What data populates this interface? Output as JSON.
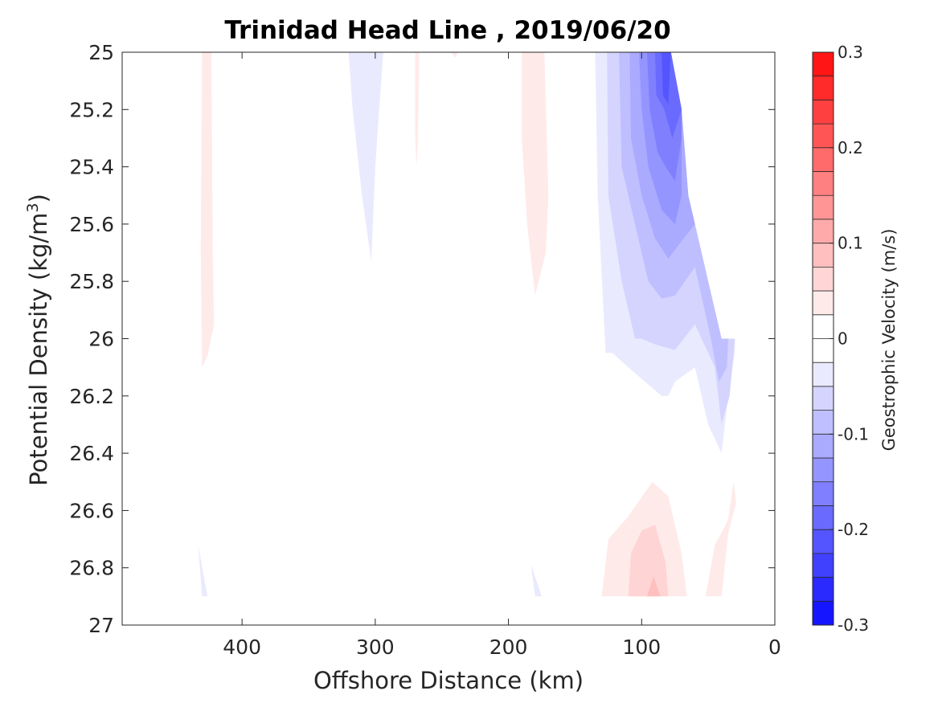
{
  "chart_data": {
    "type": "contour",
    "title": "Trinidad Head Line , 2019/06/20",
    "xlabel": "Offshore Distance (km)",
    "ylabel": "Potential Density (kg/m",
    "ylabel_sup": "3",
    "ylabel_end": ")",
    "x_reversed": true,
    "xlim": [
      0,
      490
    ],
    "ylim": [
      25,
      27
    ],
    "y_reversed": true,
    "xticks": [
      400,
      300,
      200,
      100,
      0
    ],
    "yticks": [
      25,
      25.2,
      25.4,
      25.6,
      25.8,
      26,
      26.2,
      26.4,
      26.6,
      26.8,
      27
    ],
    "ytick_labels": [
      "25",
      "25.2",
      "25.4",
      "25.6",
      "25.8",
      "26",
      "26.2",
      "26.4",
      "26.6",
      "26.8",
      "27"
    ],
    "colorbar": {
      "label": "Geostrophic Velocity (m/s)",
      "range": [
        -0.3,
        0.3
      ],
      "step": 0.025,
      "ticks": [
        0.3,
        0.2,
        0.1,
        0,
        -0.1,
        -0.2,
        -0.3
      ],
      "tick_labels": [
        "0.3",
        "0.2",
        "0.1",
        "0",
        "-0.1",
        "-0.2",
        "-0.3"
      ],
      "negative_color": "#0000ff",
      "positive_color": "#ff0000",
      "zero_color": "#ffffff"
    },
    "regions": [
      {
        "level": 0.025,
        "points": [
          [
            430,
            25
          ],
          [
            423,
            25
          ],
          [
            422,
            25.7
          ],
          [
            421,
            25.95
          ],
          [
            426,
            26.06
          ],
          [
            430,
            26.1
          ],
          [
            431,
            25.7
          ]
        ]
      },
      {
        "level": 0.025,
        "points": [
          [
            270,
            25
          ],
          [
            267,
            25
          ],
          [
            268,
            25.3
          ],
          [
            269,
            25.4
          ],
          [
            270,
            25.3
          ]
        ]
      },
      {
        "level": 0.025,
        "points": [
          [
            243,
            25
          ],
          [
            238,
            25
          ],
          [
            240,
            25.02
          ]
        ]
      },
      {
        "level": 0.025,
        "points": [
          [
            190,
            25
          ],
          [
            173,
            25
          ],
          [
            170,
            25.5
          ],
          [
            172,
            25.7
          ],
          [
            180,
            25.85
          ],
          [
            186,
            25.6
          ],
          [
            190,
            25.3
          ]
        ]
      },
      {
        "level": 0.025,
        "points": [
          [
            130,
            26.9
          ],
          [
            125,
            26.7
          ],
          [
            110,
            26.62
          ],
          [
            92,
            26.5
          ],
          [
            80,
            26.55
          ],
          [
            70,
            26.75
          ],
          [
            66,
            26.9
          ]
        ]
      },
      {
        "level": 0.05,
        "points": [
          [
            110,
            26.9
          ],
          [
            108,
            26.75
          ],
          [
            100,
            26.67
          ],
          [
            90,
            26.65
          ],
          [
            82,
            26.78
          ],
          [
            80,
            26.9
          ]
        ]
      },
      {
        "level": 0.075,
        "points": [
          [
            96,
            26.9
          ],
          [
            91,
            26.83
          ],
          [
            86,
            26.9
          ]
        ]
      },
      {
        "level": 0.025,
        "points": [
          [
            52,
            26.9
          ],
          [
            45,
            26.72
          ],
          [
            38,
            26.66
          ],
          [
            35,
            26.63
          ],
          [
            31,
            26.5
          ],
          [
            29,
            26.57
          ],
          [
            35,
            26.68
          ],
          [
            40,
            26.9
          ]
        ]
      },
      {
        "level": -0.025,
        "points": [
          [
            320,
            25
          ],
          [
            294,
            25
          ],
          [
            297,
            25.2
          ],
          [
            300,
            25.4
          ],
          [
            303,
            25.73
          ],
          [
            310,
            25.5
          ],
          [
            317,
            25.2
          ]
        ]
      },
      {
        "level": -0.025,
        "points": [
          [
            433,
            26.72
          ],
          [
            430,
            26.9
          ],
          [
            426,
            26.9
          ]
        ]
      },
      {
        "level": -0.025,
        "points": [
          [
            183,
            26.79
          ],
          [
            180,
            26.9
          ],
          [
            175,
            26.9
          ]
        ]
      },
      {
        "level": -0.025,
        "points": [
          [
            135,
            25
          ],
          [
            133,
            25.5
          ],
          [
            127,
            26.05
          ],
          [
            122,
            26.05
          ],
          [
            110,
            26.1
          ],
          [
            85,
            26.2
          ],
          [
            80,
            26.2
          ],
          [
            75,
            26.15
          ],
          [
            60,
            26.1
          ],
          [
            50,
            26.3
          ],
          [
            40,
            26.4
          ],
          [
            35,
            26.2
          ],
          [
            30,
            26.05
          ],
          [
            30,
            26
          ],
          [
            40,
            26
          ],
          [
            50,
            25.8
          ],
          [
            60,
            25.6
          ],
          [
            65,
            25.5
          ],
          [
            70,
            25.2
          ],
          [
            78,
            25
          ]
        ]
      },
      {
        "level": -0.05,
        "points": [
          [
            126,
            25
          ],
          [
            125,
            25.5
          ],
          [
            115,
            25.8
          ],
          [
            105,
            26
          ],
          [
            100,
            26
          ],
          [
            90,
            26.02
          ],
          [
            75,
            26.04
          ],
          [
            60,
            25.95
          ],
          [
            45,
            26.1
          ],
          [
            40,
            26.3
          ],
          [
            34,
            26.2
          ],
          [
            30,
            26
          ],
          [
            40,
            26
          ],
          [
            50,
            25.8
          ],
          [
            60,
            25.6
          ],
          [
            65,
            25.5
          ],
          [
            70,
            25.2
          ],
          [
            78,
            25
          ]
        ]
      },
      {
        "level": -0.075,
        "points": [
          [
            117,
            25
          ],
          [
            115,
            25.4
          ],
          [
            105,
            25.6
          ],
          [
            95,
            25.8
          ],
          [
            85,
            25.86
          ],
          [
            75,
            25.85
          ],
          [
            60,
            25.75
          ],
          [
            48,
            26
          ],
          [
            42,
            26.15
          ],
          [
            36,
            26.1
          ],
          [
            35,
            26
          ],
          [
            40,
            26
          ],
          [
            50,
            25.8
          ],
          [
            60,
            25.6
          ],
          [
            65,
            25.5
          ],
          [
            70,
            25.2
          ],
          [
            78,
            25
          ]
        ]
      },
      {
        "level": -0.1,
        "points": [
          [
            109,
            25
          ],
          [
            108,
            25.3
          ],
          [
            100,
            25.5
          ],
          [
            90,
            25.65
          ],
          [
            80,
            25.72
          ],
          [
            70,
            25.66
          ],
          [
            60,
            25.6
          ],
          [
            65,
            25.5
          ],
          [
            70,
            25.2
          ],
          [
            78,
            25
          ]
        ]
      },
      {
        "level": -0.125,
        "points": [
          [
            102,
            25
          ],
          [
            100,
            25.2
          ],
          [
            95,
            25.4
          ],
          [
            85,
            25.55
          ],
          [
            75,
            25.6
          ],
          [
            70,
            25.5
          ],
          [
            70,
            25.2
          ],
          [
            78,
            25
          ]
        ]
      },
      {
        "level": -0.15,
        "points": [
          [
            96,
            25
          ],
          [
            94,
            25.2
          ],
          [
            88,
            25.35
          ],
          [
            82,
            25.4
          ],
          [
            75,
            25.45
          ],
          [
            70,
            25.3
          ],
          [
            70,
            25.2
          ],
          [
            78,
            25
          ]
        ]
      },
      {
        "level": -0.175,
        "points": [
          [
            90,
            25
          ],
          [
            89,
            25.15
          ],
          [
            83,
            25.2
          ],
          [
            77,
            25.3
          ],
          [
            70,
            25.2
          ],
          [
            78,
            25
          ]
        ]
      },
      {
        "level": -0.2,
        "points": [
          [
            85,
            25
          ],
          [
            84,
            25.15
          ],
          [
            80,
            25.18
          ],
          [
            78,
            25
          ]
        ]
      }
    ]
  }
}
